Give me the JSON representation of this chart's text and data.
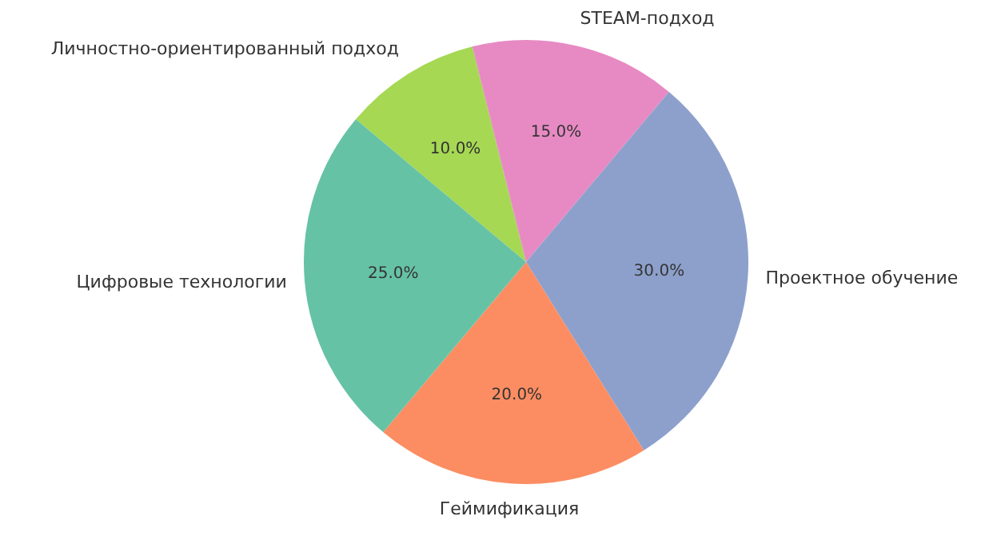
{
  "chart_data": {
    "type": "pie",
    "categories": [
      "Личностно-ориентированный подход",
      "STEAM-подход",
      "Проектное обучение",
      "Геймификация",
      "Цифровые технологии"
    ],
    "values": [
      10,
      15,
      30,
      20,
      25
    ],
    "colors": [
      "#a6d854",
      "#e78ac3",
      "#8da0cb",
      "#fc8d62",
      "#66c2a5"
    ],
    "value_labels": [
      "10.0%",
      "15.0%",
      "30.0%",
      "20.0%",
      "25.0%"
    ],
    "legend": false
  }
}
